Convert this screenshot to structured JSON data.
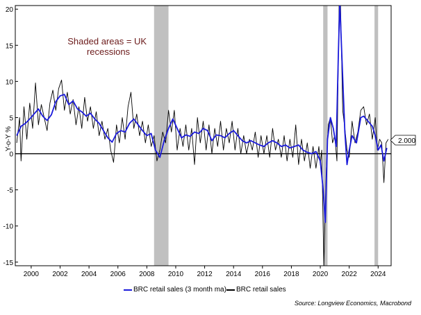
{
  "chart_data": {
    "type": "line",
    "title": "",
    "xlabel": "",
    "ylabel": "Y-o-Y %",
    "xlim": [
      1998.9,
      2024.9
    ],
    "ylim": [
      -15.5,
      20.5
    ],
    "x_ticks": [
      2000,
      2002,
      2004,
      2006,
      2008,
      2010,
      2012,
      2014,
      2016,
      2018,
      2020,
      2022,
      2024
    ],
    "y_ticks": [
      -15,
      -10,
      -5,
      0,
      5,
      10,
      15,
      20
    ],
    "grid": false,
    "zero_line": true,
    "recessions": [
      [
        2008.5,
        2009.5
      ],
      [
        2020.2,
        2020.5
      ],
      [
        2023.75,
        2024.0
      ]
    ],
    "annotation": "Shaded areas = UK\nrecessions",
    "last_value_label": "2.000",
    "legend_position": "bottom",
    "series": [
      {
        "name": "BRC retail sales (3 month ma)",
        "color": "#1a1adb",
        "points": [
          [
            1999.0,
            2.5
          ],
          [
            1999.3,
            3.8
          ],
          [
            1999.6,
            4.2
          ],
          [
            1999.9,
            4.8
          ],
          [
            2000.2,
            5.5
          ],
          [
            2000.5,
            6.2
          ],
          [
            2000.8,
            5.2
          ],
          [
            2001.1,
            4.6
          ],
          [
            2001.4,
            5.4
          ],
          [
            2001.7,
            7.2
          ],
          [
            2002.0,
            8.0
          ],
          [
            2002.3,
            8.2
          ],
          [
            2002.6,
            6.8
          ],
          [
            2002.9,
            7.3
          ],
          [
            2003.2,
            6.2
          ],
          [
            2003.5,
            5.8
          ],
          [
            2003.8,
            5.2
          ],
          [
            2004.1,
            5.6
          ],
          [
            2004.4,
            4.8
          ],
          [
            2004.7,
            4.2
          ],
          [
            2005.0,
            3.2
          ],
          [
            2005.3,
            2.2
          ],
          [
            2005.6,
            1.6
          ],
          [
            2005.9,
            2.8
          ],
          [
            2006.2,
            3.2
          ],
          [
            2006.5,
            3.0
          ],
          [
            2006.8,
            4.2
          ],
          [
            2007.1,
            4.8
          ],
          [
            2007.4,
            4.0
          ],
          [
            2007.7,
            3.2
          ],
          [
            2008.0,
            2.5
          ],
          [
            2008.3,
            2.8
          ],
          [
            2008.6,
            0.5
          ],
          [
            2008.9,
            -0.5
          ],
          [
            2009.2,
            1.8
          ],
          [
            2009.5,
            3.5
          ],
          [
            2009.8,
            4.8
          ],
          [
            2010.1,
            3.5
          ],
          [
            2010.4,
            2.2
          ],
          [
            2010.7,
            2.6
          ],
          [
            2011.0,
            2.4
          ],
          [
            2011.3,
            3.0
          ],
          [
            2011.6,
            2.8
          ],
          [
            2011.9,
            3.5
          ],
          [
            2012.2,
            3.2
          ],
          [
            2012.5,
            1.8
          ],
          [
            2012.8,
            2.6
          ],
          [
            2013.1,
            2.5
          ],
          [
            2013.4,
            2.2
          ],
          [
            2013.7,
            2.8
          ],
          [
            2014.0,
            3.2
          ],
          [
            2014.3,
            2.5
          ],
          [
            2014.6,
            1.8
          ],
          [
            2014.9,
            1.5
          ],
          [
            2015.2,
            1.8
          ],
          [
            2015.5,
            1.5
          ],
          [
            2015.8,
            1.2
          ],
          [
            2016.1,
            1.0
          ],
          [
            2016.4,
            1.5
          ],
          [
            2016.7,
            1.8
          ],
          [
            2017.0,
            1.5
          ],
          [
            2017.3,
            1.0
          ],
          [
            2017.6,
            1.2
          ],
          [
            2017.9,
            0.8
          ],
          [
            2018.2,
            1.0
          ],
          [
            2018.5,
            1.2
          ],
          [
            2018.8,
            0.5
          ],
          [
            2019.1,
            0.2
          ],
          [
            2019.4,
            0.0
          ],
          [
            2019.7,
            0.3
          ],
          [
            2020.0,
            -1.0
          ],
          [
            2020.2,
            -5.0
          ],
          [
            2020.35,
            -9.5
          ],
          [
            2020.5,
            2.0
          ],
          [
            2020.7,
            5.0
          ],
          [
            2020.9,
            3.5
          ],
          [
            2021.1,
            1.0
          ],
          [
            2021.25,
            14.0
          ],
          [
            2021.35,
            21.0
          ],
          [
            2021.5,
            13.0
          ],
          [
            2021.7,
            3.0
          ],
          [
            2021.85,
            -1.5
          ],
          [
            2022.0,
            0.5
          ],
          [
            2022.2,
            2.5
          ],
          [
            2022.5,
            1.5
          ],
          [
            2022.8,
            5.0
          ],
          [
            2023.0,
            5.2
          ],
          [
            2023.3,
            4.5
          ],
          [
            2023.6,
            3.8
          ],
          [
            2023.8,
            2.5
          ],
          [
            2024.0,
            0.5
          ],
          [
            2024.2,
            1.2
          ],
          [
            2024.4,
            -1.0
          ],
          [
            2024.6,
            0.8
          ]
        ]
      },
      {
        "name": "BRC retail sales",
        "color": "#000000",
        "points": [
          [
            1999.0,
            1.5
          ],
          [
            1999.2,
            5.0
          ],
          [
            1999.3,
            -1.0
          ],
          [
            1999.5,
            6.5
          ],
          [
            1999.7,
            2.0
          ],
          [
            1999.9,
            7.0
          ],
          [
            2000.1,
            3.5
          ],
          [
            2000.3,
            9.8
          ],
          [
            2000.5,
            4.0
          ],
          [
            2000.7,
            6.8
          ],
          [
            2000.9,
            5.0
          ],
          [
            2001.1,
            3.2
          ],
          [
            2001.3,
            7.0
          ],
          [
            2001.5,
            8.8
          ],
          [
            2001.7,
            6.0
          ],
          [
            2001.9,
            9.0
          ],
          [
            2002.1,
            10.2
          ],
          [
            2002.3,
            6.0
          ],
          [
            2002.5,
            8.5
          ],
          [
            2002.7,
            5.5
          ],
          [
            2002.9,
            7.5
          ],
          [
            2003.1,
            4.0
          ],
          [
            2003.3,
            6.5
          ],
          [
            2003.5,
            3.5
          ],
          [
            2003.7,
            7.8
          ],
          [
            2003.9,
            4.5
          ],
          [
            2004.1,
            6.5
          ],
          [
            2004.3,
            3.5
          ],
          [
            2004.5,
            5.8
          ],
          [
            2004.7,
            2.5
          ],
          [
            2004.9,
            4.5
          ],
          [
            2005.1,
            2.0
          ],
          [
            2005.3,
            3.5
          ],
          [
            2005.5,
            0.5
          ],
          [
            2005.7,
            -1.2
          ],
          [
            2005.9,
            4.0
          ],
          [
            2006.1,
            1.5
          ],
          [
            2006.3,
            5.0
          ],
          [
            2006.5,
            2.0
          ],
          [
            2006.7,
            6.5
          ],
          [
            2006.9,
            8.5
          ],
          [
            2007.1,
            3.5
          ],
          [
            2007.3,
            5.5
          ],
          [
            2007.5,
            2.5
          ],
          [
            2007.7,
            4.5
          ],
          [
            2007.9,
            1.5
          ],
          [
            2008.1,
            4.0
          ],
          [
            2008.3,
            1.0
          ],
          [
            2008.5,
            2.5
          ],
          [
            2008.7,
            -1.0
          ],
          [
            2008.9,
            0.5
          ],
          [
            2009.1,
            3.0
          ],
          [
            2009.3,
            1.5
          ],
          [
            2009.5,
            6.0
          ],
          [
            2009.7,
            3.0
          ],
          [
            2009.9,
            6.0
          ],
          [
            2010.1,
            0.5
          ],
          [
            2010.3,
            3.5
          ],
          [
            2010.5,
            1.0
          ],
          [
            2010.7,
            4.0
          ],
          [
            2010.9,
            0.5
          ],
          [
            2011.1,
            3.5
          ],
          [
            2011.3,
            -1.5
          ],
          [
            2011.5,
            5.0
          ],
          [
            2011.7,
            1.5
          ],
          [
            2011.9,
            4.5
          ],
          [
            2012.1,
            0.5
          ],
          [
            2012.3,
            4.0
          ],
          [
            2012.5,
            0.0
          ],
          [
            2012.7,
            3.5
          ],
          [
            2012.9,
            1.0
          ],
          [
            2013.1,
            4.5
          ],
          [
            2013.3,
            0.5
          ],
          [
            2013.5,
            3.5
          ],
          [
            2013.7,
            1.5
          ],
          [
            2013.9,
            4.5
          ],
          [
            2014.1,
            0.5
          ],
          [
            2014.3,
            3.5
          ],
          [
            2014.5,
            0.0
          ],
          [
            2014.7,
            2.5
          ],
          [
            2014.9,
            0.0
          ],
          [
            2015.1,
            2.0
          ],
          [
            2015.3,
            0.5
          ],
          [
            2015.5,
            3.0
          ],
          [
            2015.7,
            -0.5
          ],
          [
            2015.9,
            2.5
          ],
          [
            2016.1,
            0.0
          ],
          [
            2016.3,
            2.5
          ],
          [
            2016.5,
            -0.5
          ],
          [
            2016.7,
            3.5
          ],
          [
            2016.9,
            0.5
          ],
          [
            2017.1,
            2.0
          ],
          [
            2017.3,
            -0.5
          ],
          [
            2017.5,
            2.5
          ],
          [
            2017.7,
            -1.0
          ],
          [
            2017.9,
            2.0
          ],
          [
            2018.1,
            -0.5
          ],
          [
            2018.3,
            4.0
          ],
          [
            2018.5,
            -1.5
          ],
          [
            2018.7,
            2.0
          ],
          [
            2018.9,
            -1.0
          ],
          [
            2019.1,
            1.5
          ],
          [
            2019.3,
            -2.0
          ],
          [
            2019.5,
            1.0
          ],
          [
            2019.7,
            -2.0
          ],
          [
            2019.9,
            1.0
          ],
          [
            2020.0,
            -1.5
          ],
          [
            2020.1,
            0.5
          ],
          [
            2020.25,
            -15.5
          ],
          [
            2020.4,
            -3.0
          ],
          [
            2020.55,
            4.0
          ],
          [
            2020.7,
            5.0
          ],
          [
            2020.85,
            1.5
          ],
          [
            2021.0,
            2.5
          ],
          [
            2021.15,
            -1.0
          ],
          [
            2021.3,
            20.5
          ],
          [
            2021.4,
            20.5
          ],
          [
            2021.55,
            6.0
          ],
          [
            2021.7,
            3.5
          ],
          [
            2021.85,
            0.5
          ],
          [
            2022.0,
            -0.5
          ],
          [
            2022.2,
            4.5
          ],
          [
            2022.4,
            1.5
          ],
          [
            2022.6,
            3.0
          ],
          [
            2022.8,
            6.0
          ],
          [
            2023.0,
            6.5
          ],
          [
            2023.2,
            4.0
          ],
          [
            2023.4,
            5.5
          ],
          [
            2023.6,
            2.0
          ],
          [
            2023.8,
            5.0
          ],
          [
            2023.95,
            0.5
          ],
          [
            2024.1,
            2.0
          ],
          [
            2024.25,
            1.5
          ],
          [
            2024.4,
            -4.0
          ],
          [
            2024.55,
            1.5
          ],
          [
            2024.7,
            2.0
          ]
        ]
      }
    ]
  }
}
